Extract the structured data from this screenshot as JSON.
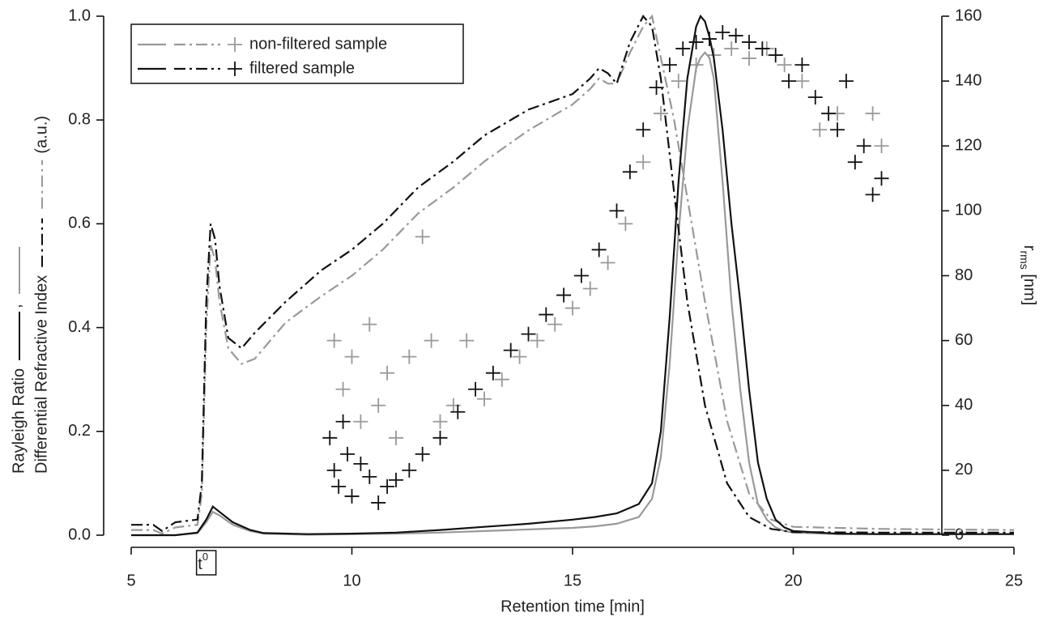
{
  "chart_data": {
    "type": "combo",
    "xlabel": "Retention time [min]",
    "ylabel": {
      "line1": "Rayleigh Ratio",
      "sep": ",",
      "line2": "Differential Refractive Index",
      "unit": "(a.u.)"
    },
    "y2label": {
      "main": "r",
      "sub": "rms",
      "unit": " [nm]"
    },
    "annotation": {
      "text": "t",
      "sup": "0",
      "x": 6.7
    },
    "xlim": [
      5,
      25
    ],
    "xticks": [
      5,
      10,
      15,
      20,
      25
    ],
    "ylim": [
      0,
      1
    ],
    "yticks": [
      {
        "value": 0,
        "label": "0.0"
      },
      0.2,
      0.4,
      0.6,
      0.8,
      {
        "value": 1,
        "label": "1.0"
      }
    ],
    "y2lim": [
      0,
      160
    ],
    "y2ticks": [
      0,
      20,
      40,
      60,
      80,
      100,
      120,
      140,
      160
    ],
    "samples": [
      {
        "name": "non-filtered sample",
        "color": "#999999",
        "rayleigh": {
          "x": [
            5,
            6,
            6.5,
            6.7,
            6.85,
            7,
            7.3,
            7.7,
            8,
            9,
            10,
            11,
            12,
            13,
            14,
            15,
            15.5,
            16,
            16.5,
            16.8,
            17,
            17.2,
            17.4,
            17.6,
            17.8,
            17.9,
            18,
            18.1,
            18.2,
            18.4,
            18.6,
            18.8,
            19,
            19.2,
            19.4,
            19.6,
            19.8,
            20,
            21,
            22,
            23,
            24,
            25
          ],
          "values": [
            0,
            0,
            0.004,
            0.025,
            0.045,
            0.038,
            0.02,
            0.008,
            0.003,
            0.001,
            0.002,
            0.003,
            0.005,
            0.008,
            0.011,
            0.014,
            0.017,
            0.022,
            0.035,
            0.07,
            0.15,
            0.33,
            0.58,
            0.78,
            0.9,
            0.92,
            0.93,
            0.92,
            0.88,
            0.68,
            0.45,
            0.28,
            0.14,
            0.06,
            0.03,
            0.015,
            0.008,
            0.005,
            0.002,
            0.002,
            0.002,
            0.002,
            0.002
          ]
        },
        "dri": {
          "x": [
            5,
            5.5,
            5.7,
            6,
            6.5,
            6.6,
            6.7,
            6.8,
            6.9,
            7,
            7.2,
            7.5,
            7.8,
            8.5,
            9.3,
            10,
            10.7,
            11.5,
            12.3,
            13,
            14,
            15,
            15.4,
            15.6,
            15.8,
            16,
            16.3,
            16.6,
            16.8,
            17,
            17.3,
            17.6,
            18,
            18.5,
            19,
            19.5,
            20,
            22,
            25
          ],
          "values": [
            0.01,
            0.01,
            0.003,
            0.015,
            0.02,
            0.08,
            0.4,
            0.56,
            0.53,
            0.45,
            0.36,
            0.33,
            0.34,
            0.41,
            0.46,
            0.5,
            0.55,
            0.62,
            0.67,
            0.72,
            0.78,
            0.83,
            0.86,
            0.88,
            0.87,
            0.87,
            0.93,
            0.98,
            1.0,
            0.92,
            0.8,
            0.65,
            0.45,
            0.22,
            0.08,
            0.03,
            0.016,
            0.012,
            0.01
          ]
        },
        "rms": {
          "x": [
            9.6,
            9.8,
            10,
            10.2,
            10.4,
            10.6,
            10.8,
            11,
            11.3,
            11.6,
            11.8,
            12,
            12.3,
            12.6,
            13,
            13.4,
            13.8,
            14.2,
            14.6,
            15,
            15.4,
            15.8,
            16.2,
            16.6,
            17,
            17.4,
            17.8,
            18.2,
            18.6,
            19,
            19.4,
            19.8,
            20.2,
            20.6,
            21,
            21.4,
            21.8,
            22
          ],
          "values": [
            60,
            45,
            55,
            35,
            65,
            40,
            50,
            30,
            55,
            92,
            60,
            35,
            40,
            60,
            42,
            48,
            55,
            60,
            65,
            70,
            76,
            84,
            96,
            115,
            130,
            140,
            145,
            148,
            150,
            147,
            150,
            145,
            140,
            125,
            130,
            115,
            130,
            120
          ]
        }
      },
      {
        "name": "filtered sample",
        "color": "#111111",
        "rayleigh": {
          "x": [
            5,
            6,
            6.5,
            6.7,
            6.85,
            7,
            7.3,
            7.7,
            8,
            9,
            10,
            11,
            12,
            13,
            14,
            15,
            15.5,
            16,
            16.5,
            16.8,
            17,
            17.2,
            17.4,
            17.6,
            17.8,
            17.9,
            18,
            18.1,
            18.2,
            18.4,
            18.6,
            18.8,
            19,
            19.2,
            19.4,
            19.6,
            19.8,
            20,
            21,
            22,
            23,
            24,
            25
          ],
          "values": [
            0,
            0,
            0.005,
            0.03,
            0.055,
            0.045,
            0.025,
            0.01,
            0.004,
            0.002,
            0.003,
            0.005,
            0.01,
            0.016,
            0.022,
            0.03,
            0.035,
            0.042,
            0.06,
            0.1,
            0.2,
            0.42,
            0.68,
            0.88,
            0.98,
            1.0,
            0.99,
            0.96,
            0.92,
            0.78,
            0.6,
            0.45,
            0.28,
            0.14,
            0.07,
            0.03,
            0.015,
            0.008,
            0.003,
            0.002,
            0.002,
            0.002,
            0.002
          ]
        },
        "dri": {
          "x": [
            5,
            5.5,
            5.7,
            6,
            6.5,
            6.6,
            6.7,
            6.8,
            6.9,
            7,
            7.2,
            7.5,
            7.8,
            8.5,
            9.3,
            10,
            10.7,
            11.5,
            12.3,
            13,
            14,
            15,
            15.4,
            15.6,
            15.8,
            16,
            16.3,
            16.6,
            16.8,
            17,
            17.3,
            17.6,
            18,
            18.5,
            19,
            19.5,
            20,
            22,
            25
          ],
          "values": [
            0.02,
            0.02,
            0.008,
            0.025,
            0.03,
            0.1,
            0.45,
            0.6,
            0.57,
            0.48,
            0.38,
            0.36,
            0.39,
            0.45,
            0.51,
            0.55,
            0.6,
            0.67,
            0.72,
            0.77,
            0.82,
            0.85,
            0.88,
            0.9,
            0.89,
            0.87,
            0.95,
            1.0,
            0.98,
            0.88,
            0.66,
            0.45,
            0.25,
            0.1,
            0.035,
            0.012,
            0.006,
            0.005,
            0.005
          ]
        },
        "rms": {
          "x": [
            9.5,
            9.6,
            9.7,
            9.8,
            9.9,
            10,
            10.2,
            10.4,
            10.6,
            10.8,
            11,
            11.3,
            11.6,
            12,
            12.4,
            12.8,
            13.2,
            13.6,
            14,
            14.4,
            14.8,
            15.2,
            15.6,
            16,
            16.3,
            16.6,
            16.9,
            17.2,
            17.5,
            17.8,
            18.1,
            18.4,
            18.7,
            19,
            19.3,
            19.6,
            19.9,
            20.2,
            20.5,
            20.8,
            21,
            21.2,
            21.4,
            21.6,
            21.8,
            22
          ],
          "values": [
            30,
            20,
            15,
            35,
            25,
            12,
            22,
            18,
            10,
            15,
            17,
            20,
            25,
            30,
            38,
            45,
            50,
            57,
            62,
            68,
            74,
            80,
            88,
            100,
            112,
            125,
            138,
            145,
            150,
            152,
            153,
            155,
            154,
            152,
            150,
            148,
            140,
            145,
            135,
            130,
            125,
            140,
            115,
            120,
            105,
            110
          ]
        }
      }
    ]
  }
}
